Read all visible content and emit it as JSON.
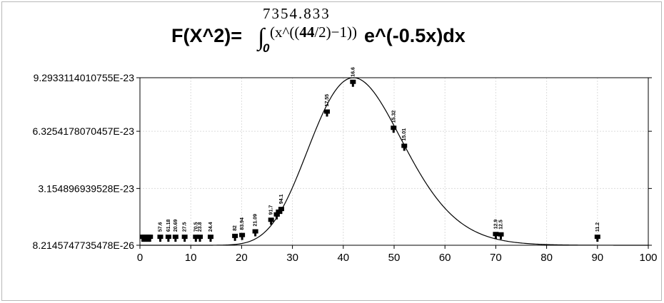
{
  "title": {
    "upper_limit": "7354.833",
    "integral_sign": "∫",
    "lower_limit": "0",
    "left_part": "F(X^2)=",
    "power_open": "(x^((",
    "power_df": "44",
    "power_rest": "/2)−1))",
    "right_part": "e^(-0.5x)dx"
  },
  "chart_data": {
    "type": "line",
    "xlim": [
      0,
      100
    ],
    "ylim": [
      8.2145747735478e-26,
      9.2933114010755e-23
    ],
    "x_ticks": [
      "0",
      "10",
      "20",
      "30",
      "40",
      "50",
      "60",
      "70",
      "80",
      "90",
      "100"
    ],
    "y_tick_values": [
      8.2145747735478e-26,
      3.154896939528e-23,
      6.3254178070457e-23,
      9.2933114010755e-23
    ],
    "y_tick_labels": [
      "8.2145747735478E-26",
      "3.154896939528E-23",
      "6.3254178070457E-23",
      "9.2933114010755E-23"
    ],
    "grid": true,
    "curve": {
      "distribution": "chi-square",
      "df": 44,
      "scale": 7354.833
    },
    "markers": [
      {
        "x": 0.5,
        "y": 3.6e-24,
        "label": ""
      },
      {
        "x": 0.8,
        "y": 3.6e-24,
        "label": ""
      },
      {
        "x": 1.1,
        "y": 3.6e-24,
        "label": ""
      },
      {
        "x": 1.4,
        "y": 3.6e-24,
        "label": ""
      },
      {
        "x": 1.7,
        "y": 3.6e-24,
        "label": ""
      },
      {
        "x": 2.0,
        "y": 3.6e-24,
        "label": ""
      },
      {
        "x": 4.0,
        "y": 3.6e-24,
        "label": "57.6"
      },
      {
        "x": 5.6,
        "y": 3.6e-24,
        "label": "61.18"
      },
      {
        "x": 7.0,
        "y": 3.6e-24,
        "label": "20.69"
      },
      {
        "x": 8.8,
        "y": 3.6e-24,
        "label": "27.5"
      },
      {
        "x": 11.0,
        "y": 3.6e-24,
        "label": "70.5"
      },
      {
        "x": 11.8,
        "y": 3.6e-24,
        "label": "23.8"
      },
      {
        "x": 13.9,
        "y": 3.6e-24,
        "label": "24.4"
      },
      {
        "x": 18.7,
        "y": 4.1e-24,
        "label": "82"
      },
      {
        "x": 20.1,
        "y": 4.6e-24,
        "label": "83.94"
      },
      {
        "x": 22.7,
        "y": 6.6e-24,
        "label": "21.09"
      },
      {
        "x": 25.8,
        "y": 1.3e-23,
        "label": "91.7"
      },
      {
        "x": 26.9,
        "y": 1.6e-23,
        "label": ""
      },
      {
        "x": 27.3,
        "y": 1.75e-23,
        "label": ""
      },
      {
        "x": 27.8,
        "y": 1.9e-23,
        "label": "94.1"
      },
      {
        "x": 36.8,
        "y": 7.3e-23,
        "label": "17.55"
      },
      {
        "x": 41.9,
        "y": 8.95e-23,
        "label": "16.6"
      },
      {
        "x": 49.9,
        "y": 6.4e-23,
        "label": "15.32"
      },
      {
        "x": 52.0,
        "y": 5.4e-23,
        "label": "15.01"
      },
      {
        "x": 70.0,
        "y": 5.1e-24,
        "label": "12.9"
      },
      {
        "x": 71.0,
        "y": 4.9e-24,
        "label": "12.5"
      },
      {
        "x": 90.0,
        "y": 3.6e-24,
        "label": "11.2"
      }
    ]
  }
}
